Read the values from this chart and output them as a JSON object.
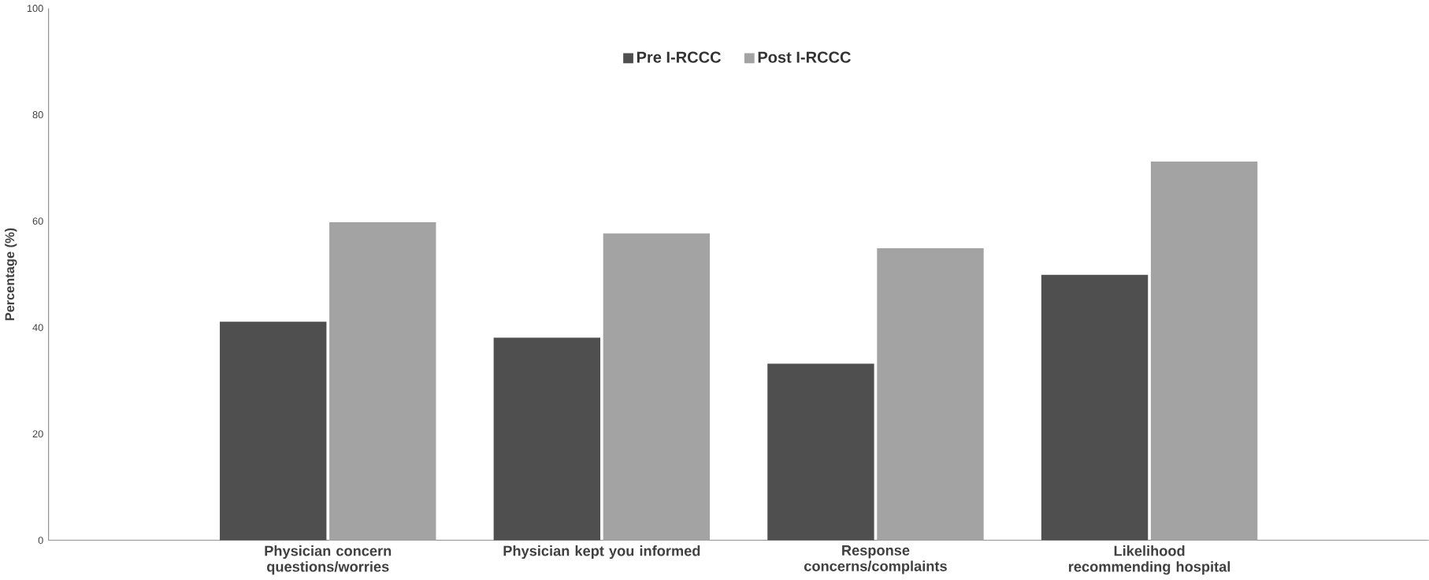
{
  "chart_data": {
    "type": "bar",
    "ylabel": "Percentage (%)",
    "categories": [
      "Physician concern questions/worries",
      "Physician kept you informed",
      "Response concerns/complaints",
      "Likelihood recommending hospital"
    ],
    "series": [
      {
        "name": "Pre I-RCCC",
        "color": "#4f4f4f",
        "values": [
          41.1,
          38.1,
          33.2,
          49.9
        ]
      },
      {
        "name": "Post I-RCCC",
        "color": "#a3a3a3",
        "values": [
          59.8,
          57.7,
          54.9,
          71.2
        ]
      }
    ],
    "ylim": [
      0,
      100
    ],
    "yticks": [
      0,
      20,
      40,
      60,
      80,
      100
    ],
    "legend": "top",
    "grid": false
  }
}
